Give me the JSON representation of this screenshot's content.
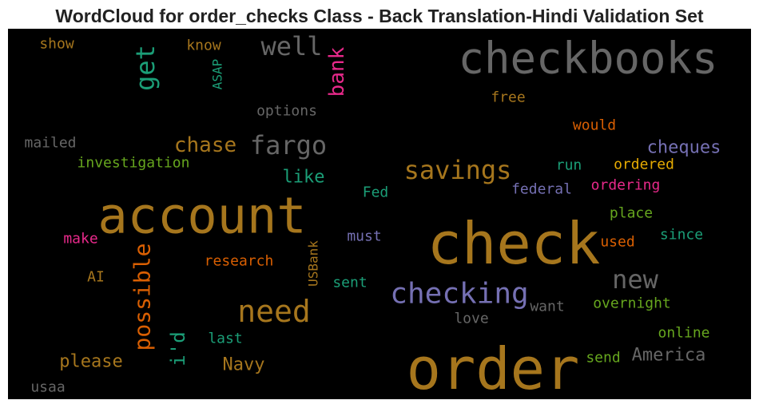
{
  "chart_data": {
    "type": "wordcloud",
    "title": "WordCloud for order_checks Class - Back Translation-Hindi Validation Set",
    "background": "#000000",
    "words": [
      {
        "text": "checkbooks",
        "color": "#666666"
      },
      {
        "text": "account",
        "color": "#a6761d"
      },
      {
        "text": "check",
        "color": "#a6761d"
      },
      {
        "text": "order",
        "color": "#a6761d"
      },
      {
        "text": "checking",
        "color": "#7570b3"
      },
      {
        "text": "need",
        "color": "#a6761d"
      },
      {
        "text": "savings",
        "color": "#a6761d"
      },
      {
        "text": "fargo",
        "color": "#666666"
      },
      {
        "text": "well",
        "color": "#666666"
      },
      {
        "text": "chase",
        "color": "#a6761d"
      },
      {
        "text": "new",
        "color": "#666666"
      },
      {
        "text": "get",
        "color": "#1b9e77"
      },
      {
        "text": "bank",
        "color": "#e7298a"
      },
      {
        "text": "possible",
        "color": "#d95f02"
      },
      {
        "text": "i'd",
        "color": "#1b9e77"
      },
      {
        "text": "ASAP",
        "color": "#1b9e77"
      },
      {
        "text": "USBank",
        "color": "#a6761d"
      },
      {
        "text": "cheques",
        "color": "#7570b3"
      },
      {
        "text": "please",
        "color": "#a6761d"
      },
      {
        "text": "Navy",
        "color": "#a6761d"
      },
      {
        "text": "America",
        "color": "#666666"
      },
      {
        "text": "like",
        "color": "#1b9e77"
      },
      {
        "text": "options",
        "color": "#666666"
      },
      {
        "text": "investigation",
        "color": "#66a61e"
      },
      {
        "text": "mailed",
        "color": "#666666"
      },
      {
        "text": "show",
        "color": "#a6761d"
      },
      {
        "text": "know",
        "color": "#a6761d"
      },
      {
        "text": "free",
        "color": "#a6761d"
      },
      {
        "text": "would",
        "color": "#d95f02"
      },
      {
        "text": "run",
        "color": "#1b9e77"
      },
      {
        "text": "ordered",
        "color": "#e6ab02"
      },
      {
        "text": "federal",
        "color": "#7570b3"
      },
      {
        "text": "ordering",
        "color": "#e7298a"
      },
      {
        "text": "Fed",
        "color": "#1b9e77"
      },
      {
        "text": "place",
        "color": "#66a61e"
      },
      {
        "text": "make",
        "color": "#e7298a"
      },
      {
        "text": "must",
        "color": "#7570b3"
      },
      {
        "text": "since",
        "color": "#1b9e77"
      },
      {
        "text": "used",
        "color": "#d95f02"
      },
      {
        "text": "research",
        "color": "#d95f02"
      },
      {
        "text": "AI",
        "color": "#a6761d"
      },
      {
        "text": "sent",
        "color": "#1b9e77"
      },
      {
        "text": "want",
        "color": "#666666"
      },
      {
        "text": "overnight",
        "color": "#66a61e"
      },
      {
        "text": "love",
        "color": "#666666"
      },
      {
        "text": "online",
        "color": "#66a61e"
      },
      {
        "text": "last",
        "color": "#1b9e77"
      },
      {
        "text": "send",
        "color": "#66a61e"
      },
      {
        "text": "usaa",
        "color": "#666666"
      }
    ]
  }
}
